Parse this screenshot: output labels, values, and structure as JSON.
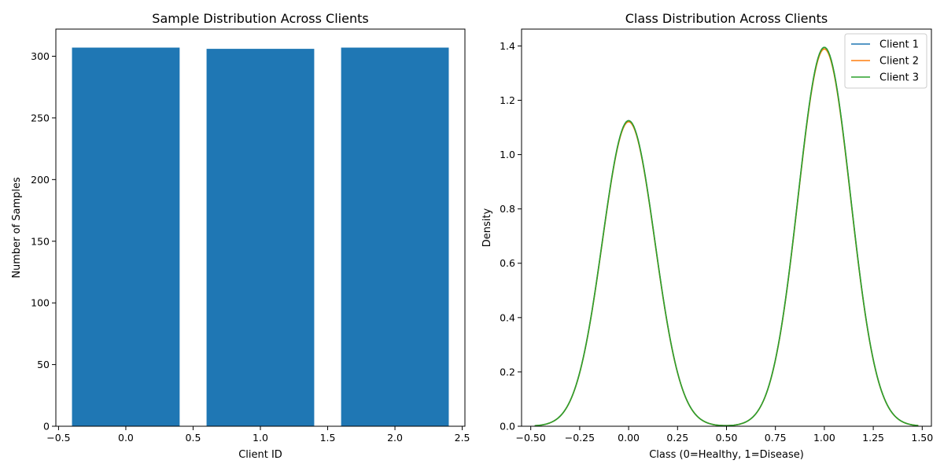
{
  "chart_data": [
    {
      "type": "bar",
      "title": "Sample Distribution Across Clients",
      "xlabel": "Client ID",
      "ylabel": "Number of Samples",
      "x": [
        0,
        1,
        2
      ],
      "values": [
        307,
        306,
        307
      ],
      "bar_width": 0.8,
      "color": "#1f77b4",
      "xlim": [
        -0.52,
        2.52
      ],
      "ylim": [
        0,
        322
      ],
      "xticks": [
        -0.5,
        0.0,
        0.5,
        1.0,
        1.5,
        2.0,
        2.5
      ],
      "xtick_labels": [
        "−0.5",
        "0.0",
        "0.5",
        "1.0",
        "1.5",
        "2.0",
        "2.5"
      ],
      "yticks": [
        0,
        50,
        100,
        150,
        200,
        250,
        300
      ],
      "ytick_labels": [
        "0",
        "50",
        "100",
        "150",
        "200",
        "250",
        "300"
      ],
      "grid": false
    },
    {
      "type": "line",
      "title": "Class Distribution Across Clients",
      "xlabel": "Class (0=Healthy, 1=Disease)",
      "ylabel": "Density",
      "xlim": [
        -0.547,
        1.547
      ],
      "ylim": [
        0,
        1.462
      ],
      "xticks": [
        -0.5,
        -0.25,
        0.0,
        0.25,
        0.5,
        0.75,
        1.0,
        1.25,
        1.5
      ],
      "xtick_labels": [
        "−0.50",
        "−0.25",
        "0.00",
        "0.25",
        "0.50",
        "0.75",
        "1.00",
        "1.25",
        "1.50"
      ],
      "yticks": [
        0.0,
        0.2,
        0.4,
        0.6,
        0.8,
        1.0,
        1.2,
        1.4
      ],
      "ytick_labels": [
        "0.0",
        "0.2",
        "0.4",
        "0.6",
        "0.8",
        "1.0",
        "1.2",
        "1.4"
      ],
      "legend_position": "top-right",
      "grid": false,
      "series": [
        {
          "name": "Client 1",
          "color": "#1f77b4",
          "peak_0": 1.125,
          "peak_1": 1.395,
          "bandwidth": 0.134
        },
        {
          "name": "Client 2",
          "color": "#ff7f0e",
          "peak_0": 1.121,
          "peak_1": 1.389,
          "bandwidth": 0.134
        },
        {
          "name": "Client 3",
          "color": "#2ca02c",
          "peak_0": 1.125,
          "peak_1": 1.395,
          "bandwidth": 0.134
        }
      ],
      "x_range": [
        -0.48,
        1.48
      ]
    }
  ]
}
